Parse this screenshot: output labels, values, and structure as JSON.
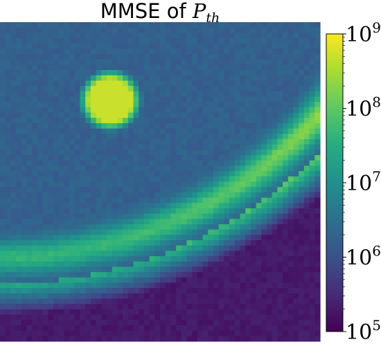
{
  "chart_data": {
    "type": "heatmap",
    "title_prefix": "MMSE of",
    "title_symbol": "P",
    "title_subscript": "th",
    "colormap": "viridis",
    "grid": false,
    "colorbar": {
      "scale": "log",
      "min": 100000,
      "max": 1000000000,
      "placement": "right",
      "ticks": [
        {
          "value": 1000000000,
          "base": "10",
          "exp": "9"
        },
        {
          "value": 100000000,
          "base": "10",
          "exp": "8"
        },
        {
          "value": 10000000,
          "base": "10",
          "exp": "7"
        },
        {
          "value": 1000000,
          "base": "10",
          "exp": "6"
        },
        {
          "value": 100000,
          "base": "10",
          "exp": "5"
        }
      ]
    },
    "field": {
      "resolution": 60,
      "domain_x": [
        0,
        1
      ],
      "domain_y": [
        0,
        1
      ],
      "log10_background": 6.25,
      "noise_amplitude_log10": 0.12,
      "blob": {
        "center": [
          0.345,
          0.245
        ],
        "radius": 0.085,
        "peak_log10": 8.7
      },
      "arc": {
        "center": [
          0.0,
          -0.6
        ],
        "radius": 1.4,
        "inner_edge_log10": 6.2,
        "peak_log10_top": 8.8,
        "peak_log10_bottom": 7.2,
        "outer_edge_log10": 5.3
      }
    }
  }
}
